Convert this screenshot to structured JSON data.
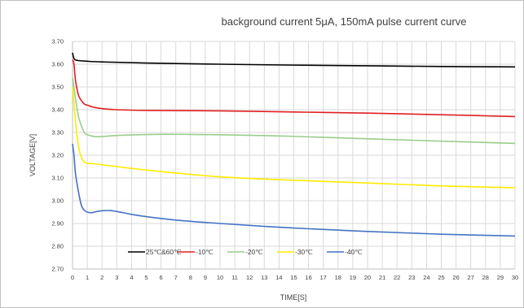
{
  "chart_data": {
    "type": "line",
    "title": "background current 5μA, 150mA pulse current curve",
    "xlabel": "TIME[S]",
    "ylabel": "VOLTAGE[V]",
    "xlim": [
      0,
      30
    ],
    "ylim": [
      2.7,
      3.7
    ],
    "x_ticks": [
      "0",
      "1",
      "2",
      "3",
      "4",
      "5",
      "6",
      "7",
      "8",
      "9",
      "10",
      "11",
      "12",
      "13",
      "14",
      "15",
      "16",
      "17",
      "18",
      "19",
      "20",
      "21",
      "22",
      "23",
      "24",
      "25",
      "26",
      "27",
      "28",
      "29",
      "30"
    ],
    "y_ticks": [
      "2.70",
      "2.80",
      "2.90",
      "3.00",
      "3.10",
      "3.20",
      "3.30",
      "3.40",
      "3.50",
      "3.60",
      "3.70"
    ],
    "grid": true,
    "legend_position": "bottom-left",
    "series": [
      {
        "name": "25℃&60℃",
        "color": "#000000",
        "x": [
          0,
          0.1,
          0.3,
          1,
          2,
          5,
          10,
          15,
          20,
          25,
          30
        ],
        "y": [
          3.65,
          3.625,
          3.617,
          3.613,
          3.61,
          3.605,
          3.6,
          3.596,
          3.593,
          3.59,
          3.588
        ]
      },
      {
        "name": "-10℃",
        "color": "#e02020",
        "x": [
          0,
          0.1,
          0.2,
          0.4,
          0.6,
          0.8,
          1,
          1.5,
          2,
          3,
          5,
          10,
          15,
          20,
          25,
          30
        ],
        "y": [
          3.62,
          3.6,
          3.53,
          3.465,
          3.44,
          3.425,
          3.42,
          3.41,
          3.405,
          3.4,
          3.397,
          3.395,
          3.39,
          3.385,
          3.378,
          3.37
        ]
      },
      {
        "name": "-20℃",
        "color": "#9acd8a",
        "x": [
          0,
          0.2,
          0.4,
          0.6,
          0.8,
          1,
          1.5,
          2,
          3,
          5,
          7,
          10,
          15,
          20,
          25,
          30
        ],
        "y": [
          3.54,
          3.45,
          3.37,
          3.33,
          3.3,
          3.29,
          3.282,
          3.282,
          3.287,
          3.291,
          3.292,
          3.29,
          3.283,
          3.272,
          3.262,
          3.252
        ]
      },
      {
        "name": "-30℃",
        "color": "#ffeb00",
        "x": [
          0,
          0.2,
          0.4,
          0.6,
          0.8,
          1,
          1.5,
          2,
          3,
          5,
          10,
          15,
          20,
          25,
          30
        ],
        "y": [
          3.5,
          3.35,
          3.24,
          3.19,
          3.17,
          3.165,
          3.162,
          3.158,
          3.15,
          3.135,
          3.105,
          3.09,
          3.078,
          3.065,
          3.057
        ]
      },
      {
        "name": "-40℃",
        "color": "#4472c4",
        "x": [
          0,
          0.1,
          0.2,
          0.4,
          0.6,
          0.8,
          1,
          1.3,
          1.6,
          2,
          2.5,
          3,
          4,
          5,
          7,
          10,
          15,
          20,
          25,
          30
        ],
        "y": [
          3.25,
          3.2,
          3.12,
          3.04,
          2.98,
          2.958,
          2.95,
          2.947,
          2.952,
          2.956,
          2.957,
          2.953,
          2.94,
          2.93,
          2.915,
          2.9,
          2.88,
          2.865,
          2.853,
          2.845
        ]
      }
    ]
  }
}
